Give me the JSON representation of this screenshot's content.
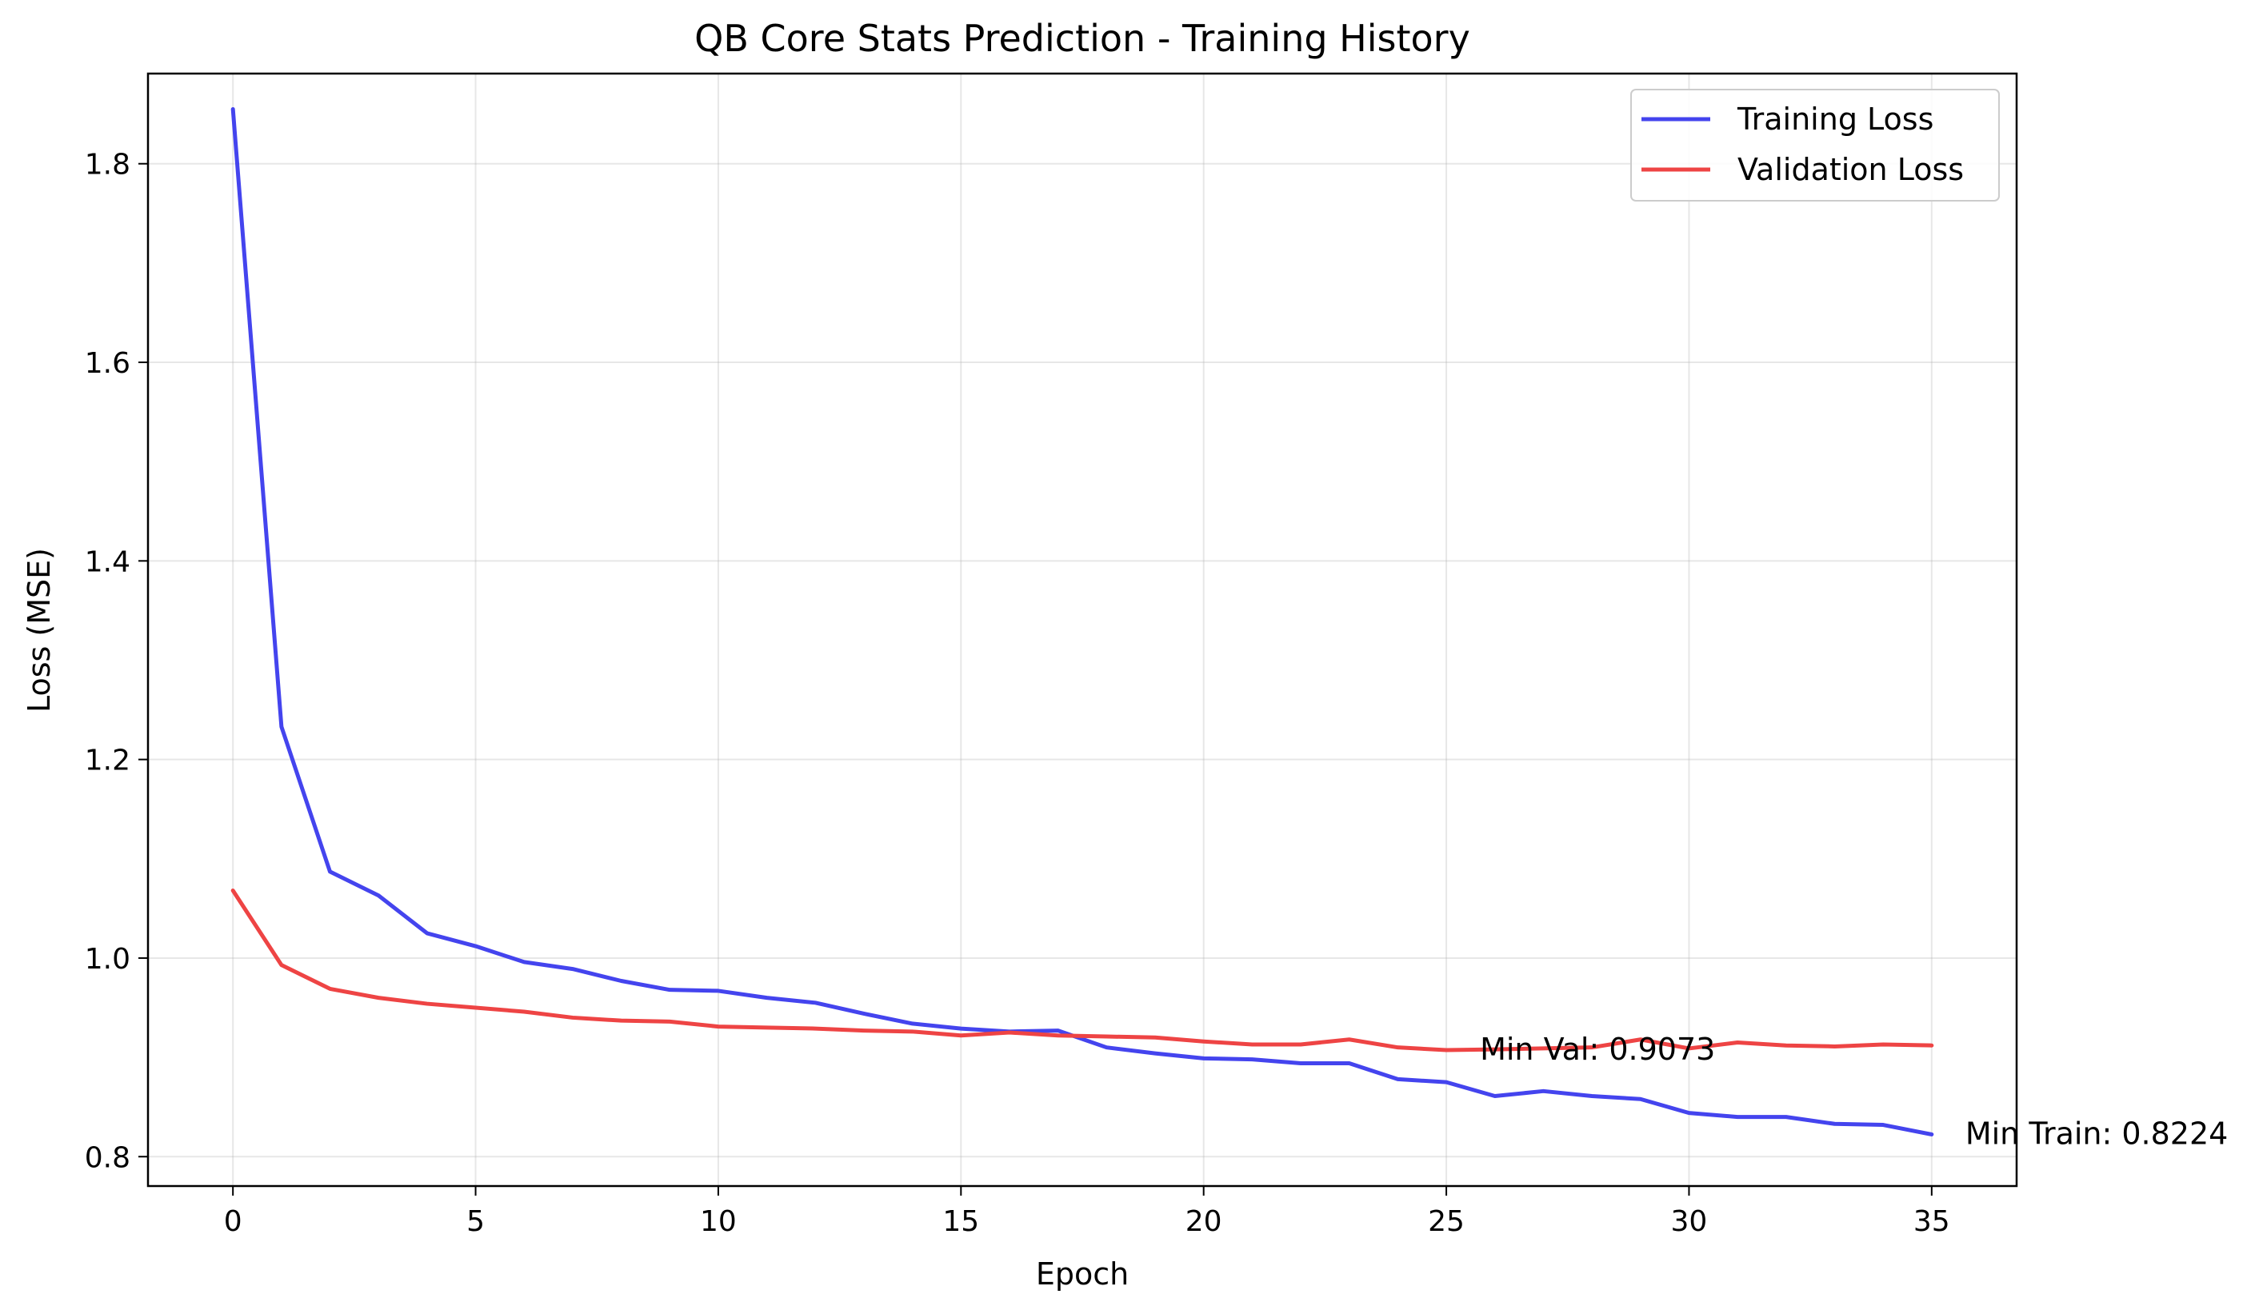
{
  "chart_data": {
    "type": "line",
    "title": "QB Core Stats Prediction - Training History",
    "xlabel": "Epoch",
    "ylabel": "Loss (MSE)",
    "xlim": [
      -1.75,
      36.75
    ],
    "ylim": [
      0.7704,
      1.8908
    ],
    "xticks": [
      0,
      5,
      10,
      15,
      20,
      25,
      30,
      35
    ],
    "yticks": [
      0.8,
      1.0,
      1.2,
      1.4,
      1.6,
      1.8
    ],
    "ytick_labels": [
      "0.8",
      "1.0",
      "1.2",
      "1.4",
      "1.6",
      "1.8"
    ],
    "grid": true,
    "legend_position": "upper right",
    "x": [
      0,
      1,
      2,
      3,
      4,
      5,
      6,
      7,
      8,
      9,
      10,
      11,
      12,
      13,
      14,
      15,
      16,
      17,
      18,
      19,
      20,
      21,
      22,
      23,
      24,
      25,
      26,
      27,
      28,
      29,
      30,
      31,
      32,
      33,
      34,
      35
    ],
    "series": [
      {
        "name": "Training Loss",
        "color": "#4444ee",
        "values": [
          1.855,
          1.233,
          1.087,
          1.063,
          1.025,
          1.012,
          0.996,
          0.989,
          0.977,
          0.968,
          0.967,
          0.96,
          0.955,
          0.944,
          0.934,
          0.929,
          0.926,
          0.927,
          0.91,
          0.904,
          0.899,
          0.898,
          0.894,
          0.894,
          0.878,
          0.875,
          0.861,
          0.866,
          0.861,
          0.858,
          0.844,
          0.84,
          0.84,
          0.833,
          0.832,
          0.8224
        ]
      },
      {
        "name": "Validation Loss",
        "color": "#ee4444",
        "values": [
          1.068,
          0.993,
          0.969,
          0.96,
          0.954,
          0.95,
          0.946,
          0.94,
          0.937,
          0.936,
          0.931,
          0.93,
          0.929,
          0.927,
          0.926,
          0.922,
          0.925,
          0.922,
          0.921,
          0.92,
          0.916,
          0.913,
          0.913,
          0.918,
          0.91,
          0.9073,
          0.908,
          0.909,
          0.91,
          0.918,
          0.909,
          0.915,
          0.912,
          0.911,
          0.913,
          0.912
        ]
      }
    ],
    "annotations": [
      {
        "text": "Min Val: 0.9073",
        "x": 25,
        "y": 0.9073
      },
      {
        "text": "Min Train: 0.8224",
        "x": 35,
        "y": 0.8224
      }
    ]
  }
}
